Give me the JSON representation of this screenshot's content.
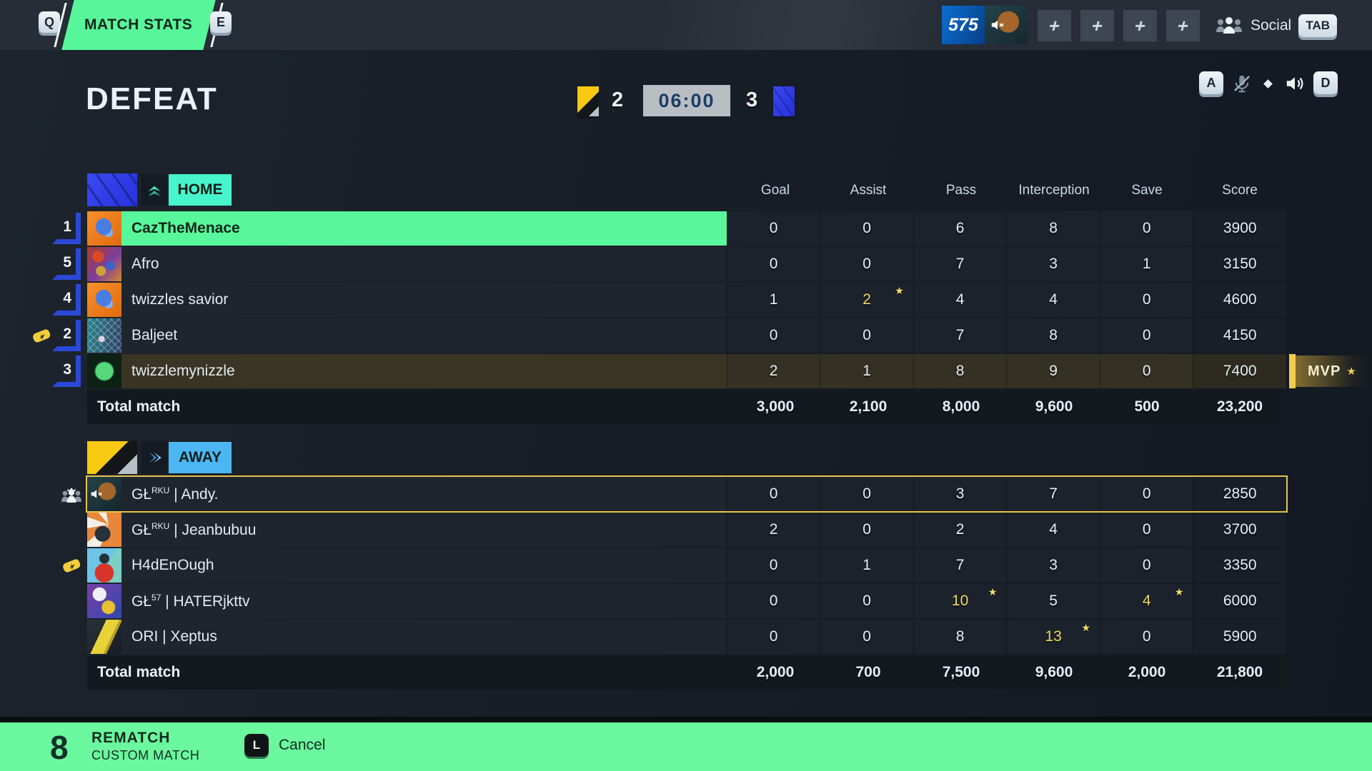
{
  "colors": {
    "accent_green": "#57f69b",
    "home_teal": "#46f5cb",
    "away_blue": "#4cb6f2",
    "gold_highlight": "#efd65e",
    "rank_blue": "#2b49d8",
    "timer_bg": "#b9bec4"
  },
  "top_bar": {
    "key_left": "Q",
    "title": "MATCH STATS",
    "key_right": "E",
    "currency": "575",
    "plus_slots": [
      "+",
      "+",
      "+",
      "+"
    ],
    "social": {
      "label": "Social",
      "key": "TAB"
    }
  },
  "status_icons": {
    "key_a": "A",
    "key_d": "D"
  },
  "header": {
    "result": "DEFEAT",
    "away_score": "2",
    "timer": "06:00",
    "home_score": "3"
  },
  "star_char": "★",
  "mvp": {
    "label": "MVP",
    "star": "★"
  },
  "table": {
    "columns": [
      "Goal",
      "Assist",
      "Pass",
      "Interception",
      "Save",
      "Score"
    ],
    "home": {
      "label": "HOME",
      "players": [
        {
          "rank": "1",
          "name_pre": "CazTheMenace",
          "name_sup": "",
          "name_post": "",
          "avatar": "shark",
          "self": true,
          "stats": [
            "0",
            "0",
            "6",
            "8",
            "0",
            "3900"
          ],
          "gold": [],
          "stars": []
        },
        {
          "rank": "5",
          "name_pre": "Afro",
          "name_sup": "",
          "name_post": "",
          "avatar": "psych",
          "stats": [
            "0",
            "0",
            "7",
            "3",
            "1",
            "3150"
          ],
          "gold": [],
          "stars": []
        },
        {
          "rank": "4",
          "name_pre": "twizzles savior",
          "name_sup": "",
          "name_post": "",
          "avatar": "shark",
          "stats": [
            "1",
            "2",
            "4",
            "4",
            "0",
            "4600"
          ],
          "gold": [
            1
          ],
          "stars": [
            1
          ]
        },
        {
          "rank": "2",
          "name_pre": "Baljeet",
          "name_sup": "",
          "name_post": "",
          "avatar": "net",
          "gutter": "armband",
          "stats": [
            "0",
            "0",
            "7",
            "8",
            "0",
            "4150"
          ],
          "gold": [],
          "stars": []
        },
        {
          "rank": "3",
          "name_pre": "twizzlemynizzle",
          "name_sup": "",
          "name_post": "",
          "avatar": "greenball",
          "mvp": true,
          "stats": [
            "2",
            "1",
            "8",
            "9",
            "0",
            "7400"
          ],
          "gold": [],
          "stars": []
        }
      ],
      "total_label": "Total match",
      "totals": [
        "3,000",
        "2,100",
        "8,000",
        "9,600",
        "500",
        "23,200"
      ]
    },
    "away": {
      "label": "AWAY",
      "players": [
        {
          "name_pre": "GŁ",
          "name_sup": "RKU",
          "name_post": " | Andy.",
          "avatar": "fox",
          "muted": true,
          "outlined": true,
          "gutter": "leader",
          "stats": [
            "0",
            "0",
            "3",
            "7",
            "0",
            "2850"
          ],
          "gold": [],
          "stars": []
        },
        {
          "name_pre": "GŁ",
          "name_sup": "RKU",
          "name_post": " | Jeanbubuu",
          "avatar": "anime",
          "stats": [
            "2",
            "0",
            "2",
            "4",
            "0",
            "3700"
          ],
          "gold": [],
          "stars": []
        },
        {
          "name_pre": "H4dEnOugh",
          "name_sup": "",
          "name_post": "",
          "avatar": "striker",
          "gutter": "armband",
          "stats": [
            "0",
            "1",
            "7",
            "3",
            "0",
            "3350"
          ],
          "gold": [],
          "stars": []
        },
        {
          "name_pre": "GŁ",
          "name_sup": "57",
          "name_post": " | HATERjkttv",
          "avatar": "glove",
          "stats": [
            "0",
            "0",
            "10",
            "5",
            "4",
            "6000"
          ],
          "gold": [
            2,
            4
          ],
          "stars": [
            2,
            4
          ]
        },
        {
          "name_pre": "ORI | Xeptus",
          "name_sup": "",
          "name_post": "",
          "avatar": "boot",
          "stats": [
            "0",
            "0",
            "8",
            "13",
            "0",
            "5900"
          ],
          "gold": [
            3
          ],
          "stars": [
            3
          ]
        }
      ],
      "total_label": "Total match",
      "totals": [
        "2,000",
        "700",
        "7,500",
        "9,600",
        "2,000",
        "21,800"
      ]
    }
  },
  "bottom_bar": {
    "key": "8",
    "title": "REMATCH",
    "subtitle": "CUSTOM MATCH",
    "cancel_key": "L",
    "cancel_label": "Cancel"
  }
}
